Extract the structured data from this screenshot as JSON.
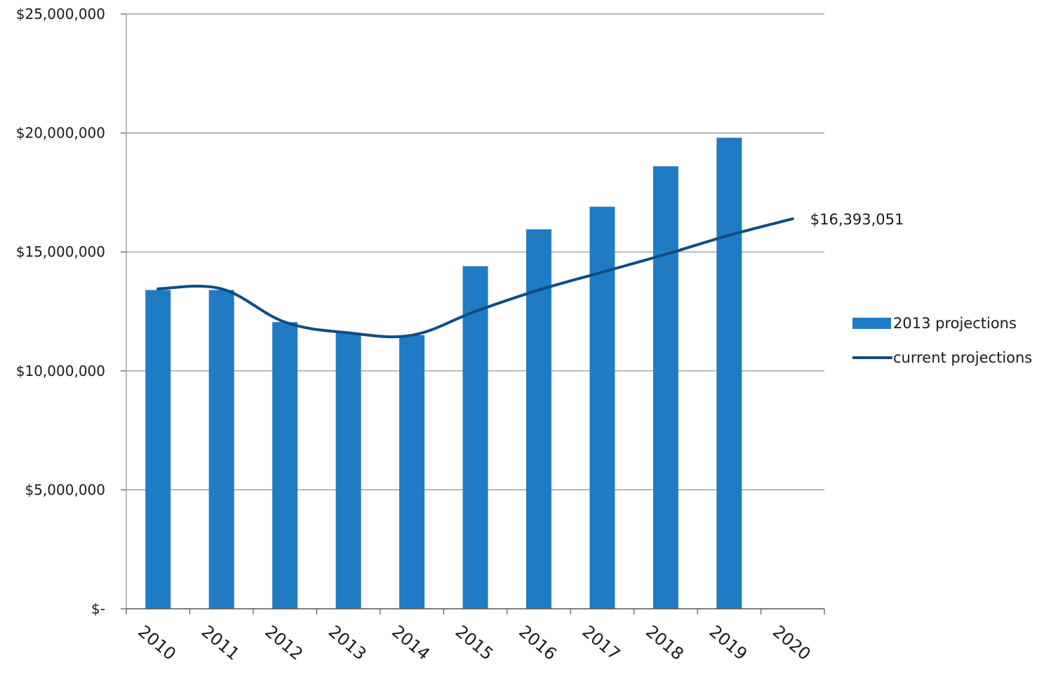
{
  "chart_data": {
    "type": "bar",
    "categories": [
      "2010",
      "2011",
      "2012",
      "2013",
      "2014",
      "2015",
      "2016",
      "2017",
      "2018",
      "2019",
      "2020"
    ],
    "y_tick_labels": [
      "$-",
      "$5,000,000",
      "$10,000,000",
      "$15,000,000",
      "$20,000,000",
      "$25,000,000"
    ],
    "ylim": [
      0,
      25000000
    ],
    "grid": true,
    "legend_position": "right",
    "series": [
      {
        "name": "2013 projections",
        "type": "bar",
        "color": "#1f7bc4",
        "values": [
          13400000,
          13400000,
          12050000,
          11600000,
          11500000,
          14400000,
          15950000,
          16900000,
          18600000,
          19800000,
          null
        ]
      },
      {
        "name": "current projections",
        "type": "line",
        "color": "#0f4c81",
        "values": [
          13450000,
          13450000,
          12050000,
          11600000,
          11500000,
          12500000,
          13400000,
          14150000,
          14900000,
          15700000,
          16393051
        ]
      }
    ],
    "annotations": [
      {
        "text": "$16,393,051",
        "category": "2020",
        "value": 16393051
      }
    ]
  }
}
